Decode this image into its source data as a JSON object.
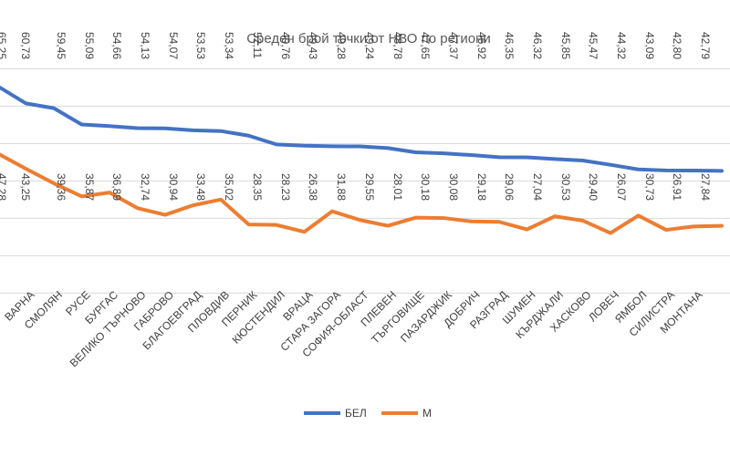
{
  "chart_data": {
    "type": "line",
    "title": "Среден брой точки от НВО по региони",
    "categories": [
      "",
      "ВАРНА",
      "СМОЛЯН",
      "РУСЕ",
      "БУРГАС",
      "ВЕЛИКО ТЪРНОВО",
      "ГАБРОВО",
      "БЛАГОЕВГРАД",
      "ПЛОВДИВ",
      "ПЕРНИК",
      "КЮСТЕНДИЛ",
      "ВРАЦА",
      "СТАРА ЗАГОРА",
      "СОФИЯ-ОБЛАСТ",
      "ПЛЕВЕН",
      "ТЪРГОВИЩЕ",
      "ПАЗАРДЖИК",
      "ДОБРИЧ",
      "РАЗГРАД",
      "ШУМЕН",
      "КЪРДЖАЛИ",
      "ХАСКОВО",
      "ЛОВЕЧ",
      "ЯМБОЛ",
      "СИЛИСТРА",
      "МОНТАНА",
      ""
    ],
    "series": [
      {
        "name": "БЕЛ",
        "color": "#4472c4",
        "values": [
          65.25,
          60.73,
          59.45,
          55.09,
          54.66,
          54.13,
          54.07,
          53.53,
          53.34,
          52.11,
          49.76,
          49.43,
          49.28,
          49.24,
          48.78,
          47.65,
          47.37,
          46.92,
          46.35,
          46.32,
          45.85,
          45.47,
          44.32,
          43.09,
          42.8,
          42.79,
          42.7
        ],
        "labels": [
          "65,25",
          "60,73",
          "59,45",
          "55,09",
          "54,66",
          "54,13",
          "54,07",
          "53,53",
          "53,34",
          "52,11",
          "49,76",
          "49,43",
          "49,28",
          "49,24",
          "48,78",
          "47,65",
          "47,37",
          "46,92",
          "46,35",
          "46,32",
          "45,85",
          "45,47",
          "44,32",
          "43,09",
          "42,80",
          "42,79",
          ""
        ]
      },
      {
        "name": "М",
        "color": "#ed7d31",
        "values": [
          47.28,
          43.25,
          39.36,
          35.87,
          36.89,
          32.74,
          30.94,
          33.48,
          35.02,
          28.35,
          28.23,
          26.38,
          31.88,
          29.55,
          28.01,
          30.18,
          30.08,
          29.18,
          29.06,
          27.04,
          30.53,
          29.4,
          26.07,
          30.73,
          26.91,
          27.84,
          28.0
        ],
        "labels": [
          "47,28",
          "43,25",
          "39,36",
          "35,87",
          "36,89",
          "32,74",
          "30,94",
          "33,48",
          "35,02",
          "28,35",
          "28,23",
          "26,38",
          "31,88",
          "29,55",
          "28,01",
          "30,18",
          "30,08",
          "29,18",
          "29,06",
          "27,04",
          "30,53",
          "29,40",
          "26,07",
          "30,73",
          "26,91",
          "27,84",
          ""
        ]
      }
    ],
    "ylim": [
      0,
      70
    ],
    "grid": true,
    "legend": "bottom"
  }
}
